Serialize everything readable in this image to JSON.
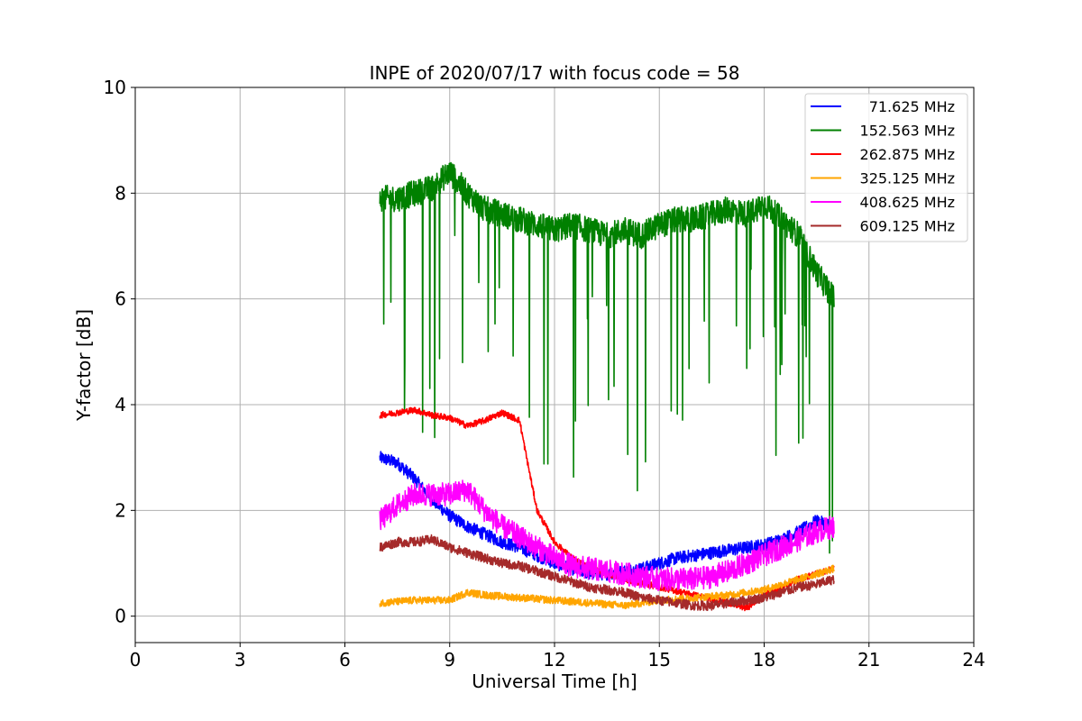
{
  "chart_data": {
    "type": "line",
    "title": "INPE of 2020/07/17 with focus code = 58",
    "xlabel": "Universal Time [h]",
    "ylabel": "Y-factor [dB]",
    "xlim": [
      0,
      24
    ],
    "ylim": [
      -0.5,
      10
    ],
    "xticks": [
      0,
      3,
      6,
      9,
      12,
      15,
      18,
      21,
      24
    ],
    "xtick_labels": [
      "0",
      "3",
      "6",
      "9",
      "12",
      "15",
      "18",
      "21",
      "24"
    ],
    "yticks": [
      0,
      2,
      4,
      6,
      8,
      10
    ],
    "ytick_labels": [
      "0",
      "2",
      "4",
      "6",
      "8",
      "10"
    ],
    "grid": true,
    "legend_position": "top-right",
    "series": [
      {
        "name": " 71.625 MHz",
        "color": "#0000ff",
        "noise": 0.12,
        "x": [
          7.0,
          7.5,
          8.0,
          8.5,
          9.0,
          9.5,
          10.0,
          10.5,
          11.0,
          11.5,
          12.0,
          12.5,
          13.0,
          13.5,
          14.0,
          14.5,
          15.0,
          15.5,
          16.0,
          16.5,
          17.0,
          17.5,
          18.0,
          18.5,
          19.0,
          19.5,
          20.0
        ],
        "y": [
          3.0,
          2.9,
          2.6,
          2.2,
          1.9,
          1.7,
          1.55,
          1.4,
          1.3,
          1.15,
          1.0,
          0.9,
          0.8,
          0.8,
          0.85,
          0.9,
          1.0,
          1.1,
          1.15,
          1.2,
          1.25,
          1.3,
          1.35,
          1.45,
          1.6,
          1.8,
          1.7
        ]
      },
      {
        "name": "152.563 MHz",
        "color": "#008000",
        "noise": 0.25,
        "x": [
          7.0,
          7.5,
          8.0,
          8.5,
          9.0,
          9.5,
          10.0,
          10.5,
          11.0,
          11.5,
          12.0,
          12.5,
          13.0,
          13.5,
          14.0,
          14.5,
          15.0,
          15.5,
          16.0,
          16.5,
          17.0,
          17.5,
          18.0,
          18.5,
          19.0,
          19.5,
          20.0
        ],
        "y": [
          7.9,
          7.9,
          8.0,
          8.1,
          8.4,
          8.0,
          7.7,
          7.6,
          7.5,
          7.4,
          7.3,
          7.4,
          7.3,
          7.2,
          7.3,
          7.2,
          7.4,
          7.5,
          7.5,
          7.6,
          7.7,
          7.6,
          7.8,
          7.5,
          7.2,
          6.5,
          6.0
        ]
      },
      {
        "name": "262.875 MHz",
        "color": "#ff0000",
        "noise": 0.06,
        "x": [
          7.0,
          7.5,
          8.0,
          8.5,
          9.0,
          9.5,
          10.0,
          10.5,
          11.0,
          11.2,
          11.5,
          12.0,
          12.5,
          13.0,
          14.0,
          15.0,
          16.0,
          17.0,
          17.5,
          18.0,
          19.0,
          20.0
        ],
        "y": [
          3.8,
          3.85,
          3.9,
          3.8,
          3.75,
          3.6,
          3.7,
          3.85,
          3.7,
          3.0,
          2.0,
          1.4,
          1.1,
          0.9,
          0.7,
          0.55,
          0.4,
          0.25,
          0.15,
          0.4,
          0.7,
          0.9
        ]
      },
      {
        "name": "325.125 MHz",
        "color": "#ffa500",
        "noise": 0.07,
        "x": [
          7.0,
          8.0,
          9.0,
          9.5,
          10.0,
          11.0,
          12.0,
          13.0,
          14.0,
          15.0,
          16.0,
          17.0,
          18.0,
          19.0,
          20.0
        ],
        "y": [
          0.25,
          0.3,
          0.3,
          0.45,
          0.4,
          0.35,
          0.3,
          0.25,
          0.2,
          0.3,
          0.35,
          0.4,
          0.5,
          0.7,
          0.9
        ]
      },
      {
        "name": "408.625 MHz",
        "color": "#ff00ff",
        "noise": 0.22,
        "x": [
          7.0,
          7.5,
          8.0,
          8.5,
          9.0,
          9.5,
          10.0,
          10.5,
          11.0,
          11.5,
          12.0,
          12.5,
          13.0,
          13.5,
          14.0,
          14.5,
          15.0,
          15.5,
          16.0,
          16.5,
          17.0,
          17.5,
          18.0,
          18.5,
          19.0,
          19.5,
          20.0
        ],
        "y": [
          1.8,
          2.1,
          2.3,
          2.3,
          2.3,
          2.4,
          2.0,
          1.7,
          1.5,
          1.3,
          1.1,
          0.95,
          0.9,
          0.85,
          0.8,
          0.75,
          0.7,
          0.7,
          0.7,
          0.75,
          0.85,
          1.0,
          1.15,
          1.3,
          1.45,
          1.6,
          1.7
        ]
      },
      {
        "name": "609.125 MHz",
        "color": "#a52a2a",
        "noise": 0.09,
        "x": [
          7.0,
          7.5,
          8.0,
          8.5,
          9.0,
          9.5,
          10.0,
          10.5,
          11.0,
          11.5,
          12.0,
          12.5,
          13.0,
          13.5,
          14.0,
          14.5,
          15.0,
          15.5,
          16.0,
          16.5,
          17.0,
          17.5,
          18.0,
          18.5,
          19.0,
          19.5,
          20.0
        ],
        "y": [
          1.3,
          1.4,
          1.4,
          1.45,
          1.3,
          1.2,
          1.1,
          1.0,
          0.95,
          0.85,
          0.75,
          0.65,
          0.55,
          0.5,
          0.45,
          0.35,
          0.3,
          0.25,
          0.2,
          0.2,
          0.25,
          0.3,
          0.35,
          0.45,
          0.55,
          0.6,
          0.7
        ]
      }
    ]
  }
}
